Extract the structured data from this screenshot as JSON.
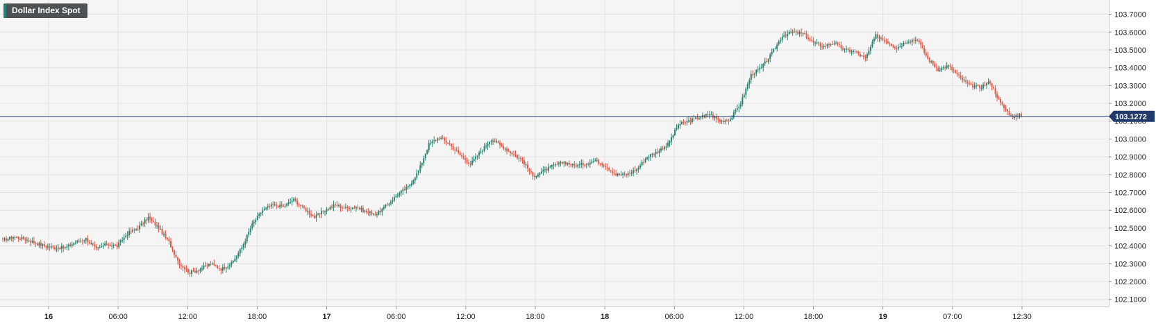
{
  "title": "Dollar Index Spot",
  "colors": {
    "up": "#26836f",
    "down": "#e05a47",
    "grid": "#e2e2e2",
    "plot_bg": "#f5f5f5",
    "last_price_line": "#1f3a6b"
  },
  "chart_data": {
    "type": "candlestick",
    "title": "Dollar Index Spot",
    "ylim": [
      102.06,
      103.78
    ],
    "yticks": [
      "103.7000",
      "103.6000",
      "103.5000",
      "103.4000",
      "103.3000",
      "103.2000",
      "103.1000",
      "103.0000",
      "102.9000",
      "102.8000",
      "102.7000",
      "102.6000",
      "102.5000",
      "102.4000",
      "102.3000",
      "102.2000",
      "102.1000"
    ],
    "xticks": [
      {
        "label": "16",
        "day": true
      },
      {
        "label": "06:00",
        "day": false
      },
      {
        "label": "12:00",
        "day": false
      },
      {
        "label": "18:00",
        "day": false
      },
      {
        "label": "17",
        "day": true
      },
      {
        "label": "06:00",
        "day": false
      },
      {
        "label": "12:00",
        "day": false
      },
      {
        "label": "18:00",
        "day": false
      },
      {
        "label": "18",
        "day": true
      },
      {
        "label": "06:00",
        "day": false
      },
      {
        "label": "12:00",
        "day": false
      },
      {
        "label": "18:00",
        "day": false
      },
      {
        "label": "19",
        "day": true
      },
      {
        "label": "07:00",
        "day": false
      },
      {
        "label": "12:30",
        "day": false
      }
    ],
    "last_price": 103.1272,
    "last_price_label": "103.1272",
    "grid": true,
    "anchors": [
      [
        102.43,
        102.45,
        102.44,
        102.42,
        102.4,
        102.39,
        102.39,
        102.42,
        102.44,
        102.38,
        102.41,
        102.4,
        102.47,
        102.5,
        102.56,
        102.5,
        102.42,
        102.3,
        102.25,
        102.27,
        102.3,
        102.27,
        102.3,
        102.39,
        102.52,
        102.6,
        102.63,
        102.62,
        102.66,
        102.61,
        102.56,
        102.6,
        102.63,
        102.61,
        102.62,
        102.59,
        102.58,
        102.63,
        102.69,
        102.73,
        102.82,
        102.97,
        103.01,
        102.97,
        102.91,
        102.86,
        102.93,
        103.0,
        102.96,
        102.92,
        102.88,
        102.79,
        102.82,
        102.85,
        102.87,
        102.85,
        102.86,
        102.88,
        102.85,
        102.8,
        102.8,
        102.83,
        102.9,
        102.93,
        102.97,
        103.08,
        103.1,
        103.12,
        103.14,
        103.1,
        103.11,
        103.2,
        103.36,
        103.4,
        103.48,
        103.58,
        103.6,
        103.59,
        103.54,
        103.52,
        103.54,
        103.5,
        103.49,
        103.45,
        103.58,
        103.55,
        103.51,
        103.55,
        103.56,
        103.45,
        103.39,
        103.41,
        103.35,
        103.3,
        103.29,
        103.32,
        103.2,
        103.13
      ],
      [
        103.13
      ]
    ]
  }
}
